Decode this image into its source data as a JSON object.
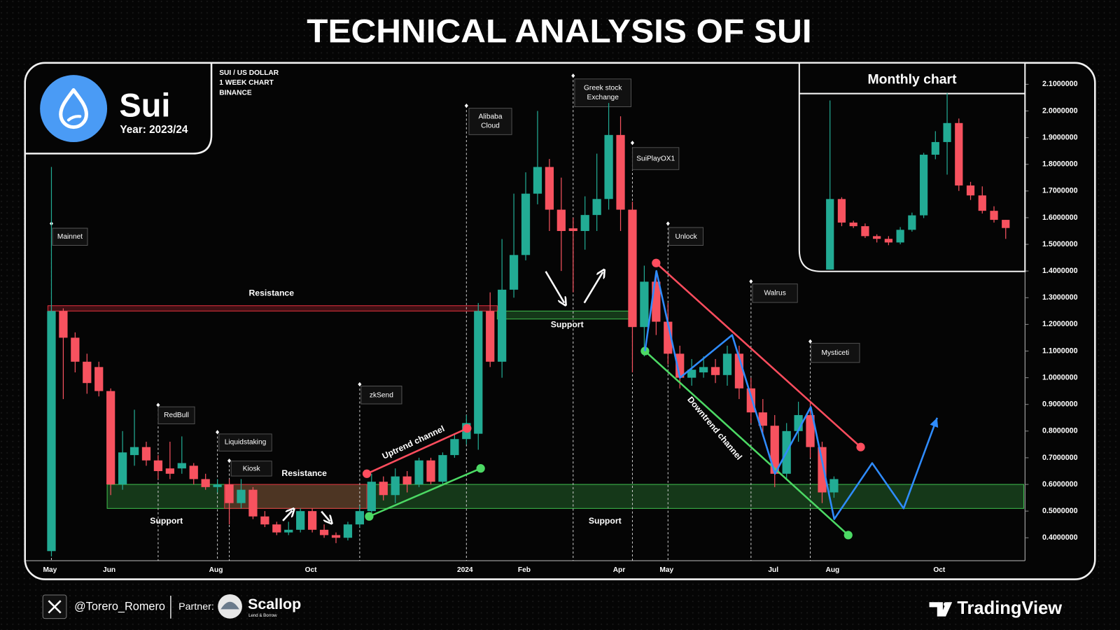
{
  "brand": {
    "name": "Sui",
    "period": "Year: 2023/24"
  },
  "chart_data": [
    {
      "type": "candlestick",
      "title": "TECHNICAL ANALYSIS OF SUI",
      "info": [
        "SUI / US DOLLAR",
        "1 WEEK CHART",
        "BINANCE"
      ],
      "categories": [
        "May",
        null,
        null,
        null,
        null,
        "Jun",
        null,
        null,
        null,
        null,
        null,
        null,
        null,
        null,
        "Aug",
        null,
        null,
        null,
        null,
        null,
        null,
        null,
        "Oct",
        null,
        null,
        null,
        null,
        null,
        null,
        null,
        null,
        null,
        null,
        null,
        null,
        "2024",
        null,
        null,
        null,
        null,
        "Feb",
        null,
        null,
        null,
        null,
        null,
        null,
        null,
        "Apr",
        null,
        null,
        null,
        "May",
        null,
        null,
        null,
        null,
        null,
        null,
        null,
        null,
        "Jul",
        null,
        null,
        null,
        null,
        "Aug",
        null,
        null,
        null,
        null,
        null,
        null,
        null,
        null,
        "Oct",
        null,
        null,
        null,
        null,
        null,
        null,
        null
      ],
      "open": [
        0.35,
        1.25,
        1.15,
        1.06,
        1.04,
        0.95,
        0.6,
        0.71,
        0.74,
        0.69,
        0.66,
        0.66,
        0.67,
        0.62,
        0.59,
        0.6,
        0.53,
        0.58,
        0.48,
        0.45,
        0.42,
        0.43,
        0.5,
        0.43,
        0.41,
        0.4,
        0.45,
        0.5,
        0.61,
        0.56,
        0.63,
        0.6,
        0.69,
        0.61,
        0.71,
        0.77,
        0.79,
        1.25,
        1.06,
        1.33,
        1.46,
        1.69,
        1.79,
        1.63,
        1.56,
        1.55,
        1.61,
        1.67,
        1.91,
        1.63,
        1.19,
        1.36,
        1.21,
        1.09,
        1.0,
        1.02,
        1.04,
        1.01,
        1.09,
        0.96,
        0.87,
        0.82,
        0.64,
        0.8,
        0.86,
        0.74,
        0.57,
        null,
        null,
        null,
        null,
        null,
        null,
        null,
        null,
        null,
        null,
        null,
        null,
        null,
        null,
        null,
        null
      ],
      "high": [
        1.79,
        1.26,
        1.17,
        1.09,
        1.06,
        0.96,
        0.8,
        0.88,
        0.76,
        0.71,
        0.76,
        0.78,
        0.68,
        0.64,
        0.62,
        0.62,
        0.62,
        0.59,
        0.5,
        0.46,
        0.46,
        0.51,
        0.51,
        0.45,
        0.42,
        0.46,
        0.52,
        0.64,
        0.63,
        0.66,
        0.65,
        0.7,
        0.7,
        0.72,
        0.79,
        0.86,
        1.28,
        1.32,
        1.52,
        1.69,
        1.77,
        2.0,
        1.82,
        1.75,
        1.6,
        1.68,
        1.84,
        2.03,
        1.98,
        1.66,
        1.42,
        1.4,
        1.28,
        1.12,
        1.07,
        1.08,
        1.07,
        1.12,
        1.12,
        1.0,
        0.92,
        0.86,
        0.83,
        0.91,
        0.91,
        0.76,
        0.63,
        null,
        null,
        null,
        null,
        null,
        null,
        null,
        null,
        null,
        null,
        null,
        null,
        null,
        null,
        null,
        null
      ],
      "low": [
        0.33,
        0.92,
        1.02,
        0.94,
        0.93,
        0.56,
        0.58,
        0.67,
        0.67,
        0.62,
        0.62,
        0.64,
        0.6,
        0.58,
        0.57,
        0.45,
        0.51,
        0.47,
        0.44,
        0.41,
        0.41,
        0.42,
        0.42,
        0.4,
        0.38,
        0.39,
        0.44,
        0.49,
        0.54,
        0.53,
        0.57,
        0.59,
        0.6,
        0.6,
        0.7,
        0.75,
        0.73,
        1.04,
        1.0,
        1.3,
        1.44,
        1.65,
        1.55,
        1.4,
        1.32,
        1.48,
        1.55,
        1.63,
        1.55,
        1.02,
        1.08,
        1.16,
        1.05,
        0.96,
        0.97,
        1.0,
        0.98,
        0.97,
        0.92,
        0.83,
        0.78,
        0.59,
        0.62,
        0.76,
        0.7,
        0.53,
        0.55,
        null,
        null,
        null,
        null,
        null,
        null,
        null,
        null,
        null,
        null,
        null,
        null,
        null,
        null,
        null,
        null
      ],
      "close": [
        1.25,
        1.15,
        1.06,
        0.98,
        0.95,
        0.6,
        0.72,
        0.74,
        0.69,
        0.65,
        0.64,
        0.68,
        0.62,
        0.59,
        0.6,
        0.53,
        0.58,
        0.48,
        0.45,
        0.42,
        0.43,
        0.5,
        0.43,
        0.41,
        0.4,
        0.45,
        0.5,
        0.61,
        0.56,
        0.63,
        0.6,
        0.69,
        0.61,
        0.71,
        0.77,
        0.83,
        1.25,
        1.06,
        1.33,
        1.46,
        1.69,
        1.79,
        1.63,
        1.55,
        1.55,
        1.61,
        1.67,
        1.91,
        1.63,
        1.19,
        1.36,
        1.21,
        1.09,
        1.0,
        1.03,
        1.04,
        1.01,
        1.09,
        0.96,
        0.87,
        0.82,
        0.64,
        0.8,
        0.86,
        0.74,
        0.57,
        0.62,
        null,
        null,
        null,
        null,
        null,
        null,
        null,
        null,
        null,
        null,
        null,
        null,
        null,
        null,
        null,
        null
      ],
      "colors": {
        "up": "#22ab94",
        "down": "#f7525f"
      },
      "ylim": [
        0.314,
        2.175
      ],
      "yticks": [
        {
          "value": 2.1,
          "label": "2.1000000"
        },
        {
          "value": 2.0,
          "label": "2.0000000"
        },
        {
          "value": 1.9,
          "label": "1.9000000"
        },
        {
          "value": 1.8,
          "label": "1.8000000"
        },
        {
          "value": 1.7,
          "label": "1.7000000"
        },
        {
          "value": 1.6,
          "label": "1.6000000"
        },
        {
          "value": 1.5,
          "label": "1.5000000"
        },
        {
          "value": 1.4,
          "label": "1.4000000"
        },
        {
          "value": 1.3,
          "label": "1.3000000"
        },
        {
          "value": 1.2,
          "label": "1.2000000"
        },
        {
          "value": 1.1,
          "label": "1.1000000"
        },
        {
          "value": 1.0,
          "label": "1.0000000"
        },
        {
          "value": 0.9,
          "label": "0.9000000"
        },
        {
          "value": 0.8,
          "label": "0.8000000"
        },
        {
          "value": 0.7,
          "label": "0.7000000"
        },
        {
          "value": 0.6,
          "label": "0.6000000"
        },
        {
          "value": 0.5,
          "label": "0.5000000"
        },
        {
          "value": 0.4,
          "label": "0.4000000"
        }
      ],
      "grid": false,
      "zones": [
        {
          "from": 4.7,
          "to": 82,
          "low": 0.51,
          "high": 0.6,
          "color": "#3fbf4f"
        },
        {
          "from": 14.6,
          "to": 26.6,
          "low": 0.51,
          "high": 0.6,
          "color": "#e0303d"
        },
        {
          "from": -0.3,
          "to": 37.6,
          "low": 1.25,
          "high": 1.27,
          "color": "#e0303d"
        },
        {
          "from": 37.6,
          "to": 48.7,
          "low": 1.22,
          "high": 1.25,
          "color": "#3fbf4f"
        }
      ],
      "events": [
        {
          "label": "Mainnet",
          "index": 0
        },
        {
          "label": "RedBull",
          "index": 9
        },
        {
          "label": "Liquidstaking",
          "index": 14
        },
        {
          "label": "Kiosk",
          "index": 15
        },
        {
          "label": "zkSend",
          "index": 26
        },
        {
          "label": "Alibaba Cloud",
          "index": 35
        },
        {
          "label": "Greek stock Exchange",
          "index": 44
        },
        {
          "label": "SuiPlayOX1",
          "index": 49
        },
        {
          "label": "Unlock",
          "index": 52
        },
        {
          "label": "Walrus",
          "index": 59
        },
        {
          "label": "Mysticeti",
          "index": 64
        }
      ],
      "annotations": [
        "Resistance",
        "Support",
        "Resistance",
        "Support",
        "Support",
        "Uptrend channel",
        "Downtrend channel"
      ],
      "overlays": [
        {
          "color": "#ff4d5e",
          "x": [
            26.6,
            35.06
          ],
          "y": [
            0.64,
            0.81
          ],
          "dots": true
        },
        {
          "color": "#4cd964",
          "x": [
            26.8,
            36.2
          ],
          "y": [
            0.48,
            0.66
          ],
          "dots": true
        },
        {
          "color": "#ff4d5e",
          "x": [
            51.0,
            68.25
          ],
          "y": [
            1.43,
            0.74
          ],
          "dots": true
        },
        {
          "color": "#4cd964",
          "x": [
            50.06,
            67.2
          ],
          "y": [
            1.1,
            0.41
          ],
          "dots": true
        },
        {
          "color": "#2f8cff",
          "x": [
            50.06,
            51.02,
            53.01,
            57.41,
            61.02,
            64.04,
            66.02,
            69.22,
            71.87,
            74.7
          ],
          "y": [
            1.1,
            1.4,
            1.0,
            1.16,
            0.64,
            0.89,
            0.47,
            0.68,
            0.51,
            0.85
          ],
          "arrow": true
        }
      ]
    },
    {
      "type": "candlestick",
      "title": "Monthly chart",
      "categories": [
        null,
        null,
        null,
        null,
        null,
        null,
        null,
        null,
        null,
        null,
        null,
        null,
        null,
        null,
        null,
        null
      ],
      "open": [
        0.33,
        1.11,
        0.85,
        0.81,
        0.7,
        0.67,
        0.63,
        0.77,
        0.93,
        1.6,
        1.74,
        1.95,
        1.26,
        1.15,
        0.98,
        0.88
      ],
      "high": [
        2.2,
        1.13,
        0.87,
        0.84,
        0.72,
        0.7,
        0.8,
        0.96,
        1.62,
        1.86,
        2.28,
        2.0,
        1.3,
        1.25,
        1.03,
        0.88
      ],
      "low": [
        0.33,
        0.81,
        0.79,
        0.68,
        0.63,
        0.6,
        0.61,
        0.75,
        0.9,
        1.55,
        1.38,
        1.2,
        1.1,
        0.95,
        0.85,
        0.67
      ],
      "close": [
        1.11,
        0.85,
        0.81,
        0.7,
        0.67,
        0.63,
        0.77,
        0.93,
        1.6,
        1.74,
        1.95,
        1.26,
        1.15,
        0.98,
        0.88,
        0.79
      ],
      "colors": {
        "up": "#22ab94",
        "down": "#f7525f"
      },
      "ylim": [
        0.31,
        2.26
      ]
    }
  ],
  "footer": {
    "handle": "@Torero_Romero",
    "partner_label": "Partner:",
    "partner_name": "Scallop",
    "partner_tagline": "Lend & Borrow",
    "platform": "TradingView"
  }
}
